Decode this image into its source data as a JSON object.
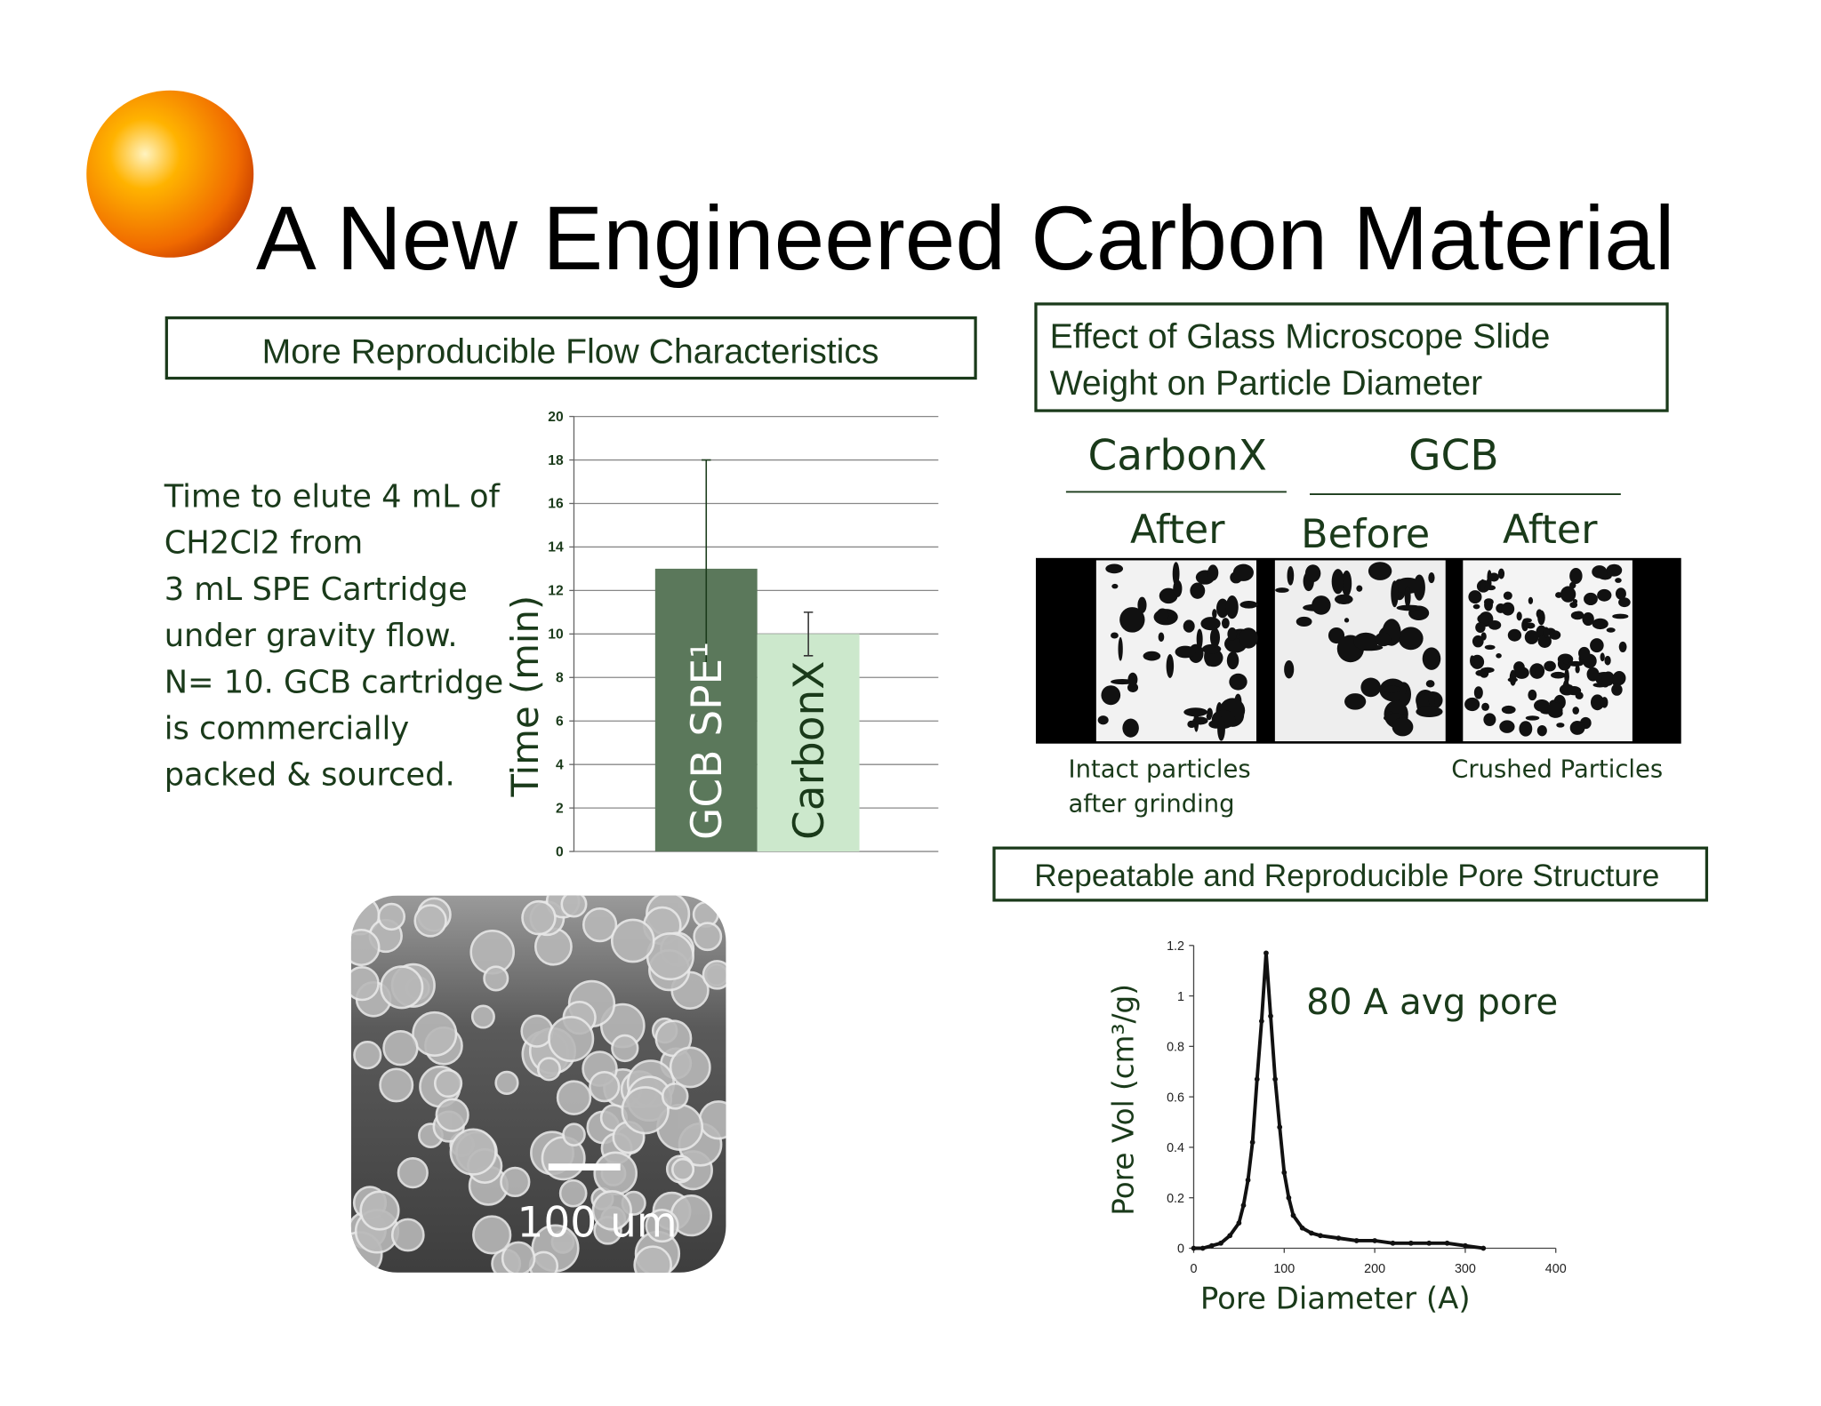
{
  "title": "A New Engineered Carbon Material",
  "flow_heading": "More Reproducible Flow Characteristics",
  "flow_description": [
    "Time to elute 4 mL of",
    "CH2Cl2 from",
    "3 mL  SPE Cartridge",
    "under gravity flow.",
    "N= 10. GCB cartridge",
    "is commercially",
    "packed & sourced."
  ],
  "microscope_heading": [
    "Effect of Glass Microscope Slide",
    "Weight on Particle Diameter"
  ],
  "microscope": {
    "groups": [
      "CarbonX",
      "GCB"
    ],
    "columns": [
      "After",
      "Before",
      "After"
    ],
    "captions": [
      [
        "Intact particles",
        "after grinding"
      ],
      [
        "Crushed Particles"
      ]
    ]
  },
  "sem_scale": "100 um",
  "pore_heading": "Repeatable and Reproducible Pore Structure",
  "chart_data": [
    {
      "type": "bar",
      "y_label": "Time (min)",
      "categories": [
        "GCB SPE¹",
        "CarbonX"
      ],
      "values": [
        13,
        10
      ],
      "errors": [
        5,
        1
      ],
      "colors": [
        "#5b785b",
        "#cce8cc"
      ],
      "ylim": [
        0,
        20
      ],
      "yticks": [
        0,
        2,
        4,
        6,
        8,
        10,
        12,
        14,
        16,
        18,
        20
      ],
      "grid": true
    },
    {
      "type": "line",
      "x_label": "Pore Diameter (A)",
      "y_label": "Pore Vol (cm³/g)",
      "annotation": "80 A avg pore",
      "color": "#111111",
      "x": [
        0,
        10,
        20,
        30,
        40,
        50,
        55,
        60,
        65,
        70,
        75,
        80,
        85,
        90,
        95,
        100,
        105,
        110,
        120,
        130,
        140,
        160,
        180,
        200,
        220,
        240,
        260,
        280,
        300,
        320
      ],
      "values": [
        0,
        0,
        0.01,
        0.02,
        0.05,
        0.1,
        0.17,
        0.27,
        0.42,
        0.67,
        0.9,
        1.17,
        0.92,
        0.67,
        0.48,
        0.3,
        0.2,
        0.13,
        0.08,
        0.06,
        0.05,
        0.04,
        0.03,
        0.03,
        0.02,
        0.02,
        0.02,
        0.02,
        0.01,
        0
      ],
      "xlim": [
        0,
        400
      ],
      "xticks": [
        0,
        100,
        200,
        300,
        400
      ],
      "ylim": [
        0,
        1.2
      ],
      "yticks": [
        0,
        0.2,
        0.4,
        0.6,
        0.8,
        1,
        1.2
      ],
      "grid": false
    }
  ]
}
